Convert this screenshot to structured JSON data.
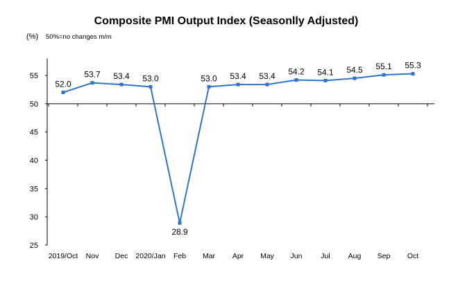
{
  "chart_data": {
    "type": "line",
    "title": "Composite PMI Output Index (Seasonlly Adjusted)",
    "unit_label": "(%)",
    "note": "50%=no changes  m/m",
    "categories": [
      "2019/Oct",
      "Nov",
      "Dec",
      "2020/Jan",
      "Feb",
      "Mar",
      "Apr",
      "May",
      "Jun",
      "Jul",
      "Aug",
      "Sep",
      "Oct"
    ],
    "series": [
      {
        "values": [
          52.0,
          53.7,
          53.4,
          53.0,
          28.9,
          53.0,
          53.4,
          53.4,
          54.2,
          54.1,
          54.5,
          55.1,
          55.3
        ],
        "labels": [
          "52.0",
          "53.7",
          "53.4",
          "53.0",
          "28.9",
          "53.0",
          "53.4",
          "53.4",
          "54.2",
          "54.1",
          "54.5",
          "55.1",
          "55.3"
        ]
      }
    ],
    "yticks": [
      "25",
      "30",
      "35",
      "40",
      "45",
      "50",
      "55"
    ],
    "ylim": [
      25,
      58
    ],
    "x_axis_crosses_at": 50,
    "grid": false,
    "color": "#2e75c8"
  }
}
